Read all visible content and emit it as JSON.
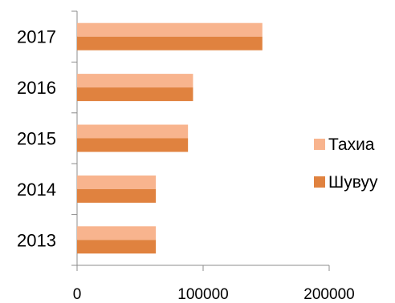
{
  "chart_data": {
    "type": "bar",
    "orientation": "horizontal",
    "categories": [
      "2013",
      "2014",
      "2015",
      "2016",
      "2017"
    ],
    "series": [
      {
        "name": "Тахиа",
        "values": [
          62500,
          62500,
          88000,
          92000,
          147000
        ],
        "color": "#F8B48E"
      },
      {
        "name": "Шувуу",
        "values": [
          62500,
          62500,
          88000,
          92000,
          147000
        ],
        "color": "#E0823F"
      }
    ],
    "xlim": [
      0,
      200000
    ],
    "x_ticks": [
      "0",
      "100000",
      "200000"
    ],
    "grid": false,
    "legend_position": "right"
  }
}
